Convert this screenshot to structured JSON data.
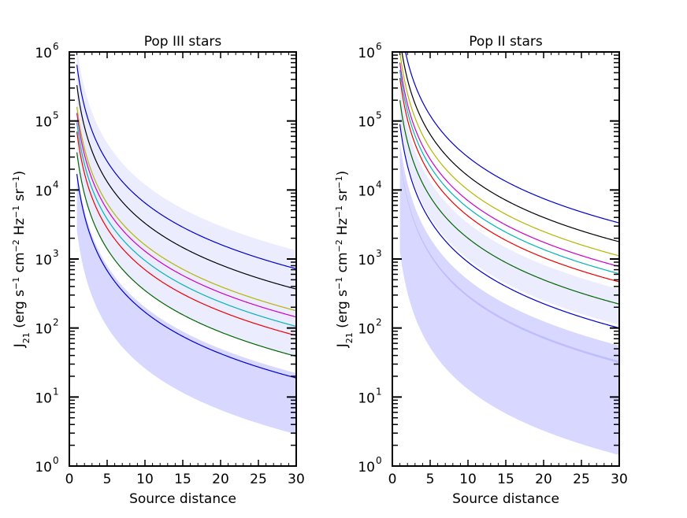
{
  "chart_data": [
    {
      "type": "line",
      "title": "Pop III stars",
      "xlabel": "Source distance",
      "ylabel": "J21 (erg s−1 cm−2 Hz−1 sr−1)",
      "yscale": "log",
      "xlim": [
        0,
        30
      ],
      "ylim": [
        1,
        1000000
      ],
      "x_ticks": [
        "0",
        "5",
        "10",
        "15",
        "20",
        "25",
        "30"
      ],
      "y_ticks": [
        {
          "base": "10",
          "exp": "0"
        },
        {
          "base": "10",
          "exp": "1"
        },
        {
          "base": "10",
          "exp": "2"
        },
        {
          "base": "10",
          "exp": "3"
        },
        {
          "base": "10",
          "exp": "4"
        },
        {
          "base": "10",
          "exp": "5"
        },
        {
          "base": "10",
          "exp": "6"
        }
      ],
      "x": [
        1,
        2,
        3,
        4,
        5,
        6,
        8,
        10,
        12,
        15,
        20,
        25,
        30
      ],
      "bands": [
        {
          "color": "#8c8cff",
          "opacity": 0.35,
          "lower_at_1": 2600,
          "upper_at_1": 20000
        },
        {
          "color": "#8c8cff",
          "opacity": 0.17,
          "lower_at_1": 35000.0,
          "upper_at_1": 1200000.0
        }
      ],
      "series": [
        {
          "color": "#0000cc",
          "at_1": 650000.0
        },
        {
          "color": "#000000",
          "at_1": 330000.0
        },
        {
          "color": "#b5b500",
          "at_1": 160000.0
        },
        {
          "color": "#cc00cc",
          "at_1": 130000.0
        },
        {
          "color": "#00b5b5",
          "at_1": 95000.0
        },
        {
          "color": "#ee0000",
          "at_1": 70000.0
        },
        {
          "color": "#006600",
          "at_1": 35000.0
        },
        {
          "color": "#0000cc",
          "at_1": 17000.0
        }
      ]
    },
    {
      "type": "line",
      "title": "Pop II stars",
      "xlabel": "Source distance",
      "ylabel": "J21 (erg s−1 cm−2 Hz−1 sr−1)",
      "yscale": "log",
      "xlim": [
        0,
        30
      ],
      "ylim": [
        1,
        1000000
      ],
      "x_ticks": [
        "0",
        "5",
        "10",
        "15",
        "20",
        "25",
        "30"
      ],
      "y_ticks": [
        {
          "base": "10",
          "exp": "0"
        },
        {
          "base": "10",
          "exp": "1"
        },
        {
          "base": "10",
          "exp": "2"
        },
        {
          "base": "10",
          "exp": "3"
        },
        {
          "base": "10",
          "exp": "4"
        },
        {
          "base": "10",
          "exp": "5"
        },
        {
          "base": "10",
          "exp": "6"
        }
      ],
      "x": [
        1,
        2,
        3,
        4,
        5,
        6,
        8,
        10,
        12,
        15,
        20,
        25,
        30
      ],
      "bands": [
        {
          "color": "#8c8cff",
          "opacity": 0.35,
          "lower_at_1": 1300,
          "upper_at_1": 30000
        },
        {
          "color": "#8c8cff",
          "opacity": 0.35,
          "lower_at_1": 28000.0,
          "upper_at_1": 50000.0
        },
        {
          "color": "#8c8cff",
          "opacity": 0.17,
          "lower_at_1": 100000.0,
          "upper_at_1": 330000.0
        }
      ],
      "series": [
        {
          "color": "#0000cc",
          "at_1": 3000000.0
        },
        {
          "color": "#000000",
          "at_1": 1600000.0
        },
        {
          "color": "#b5b500",
          "at_1": 1000000.0
        },
        {
          "color": "#cc00cc",
          "at_1": 700000.0
        },
        {
          "color": "#00b5b5",
          "at_1": 550000.0
        },
        {
          "color": "#ee0000",
          "at_1": 420000.0
        },
        {
          "color": "#006600",
          "at_1": 200000.0
        },
        {
          "color": "#0000cc",
          "at_1": 90000.0
        }
      ]
    }
  ]
}
